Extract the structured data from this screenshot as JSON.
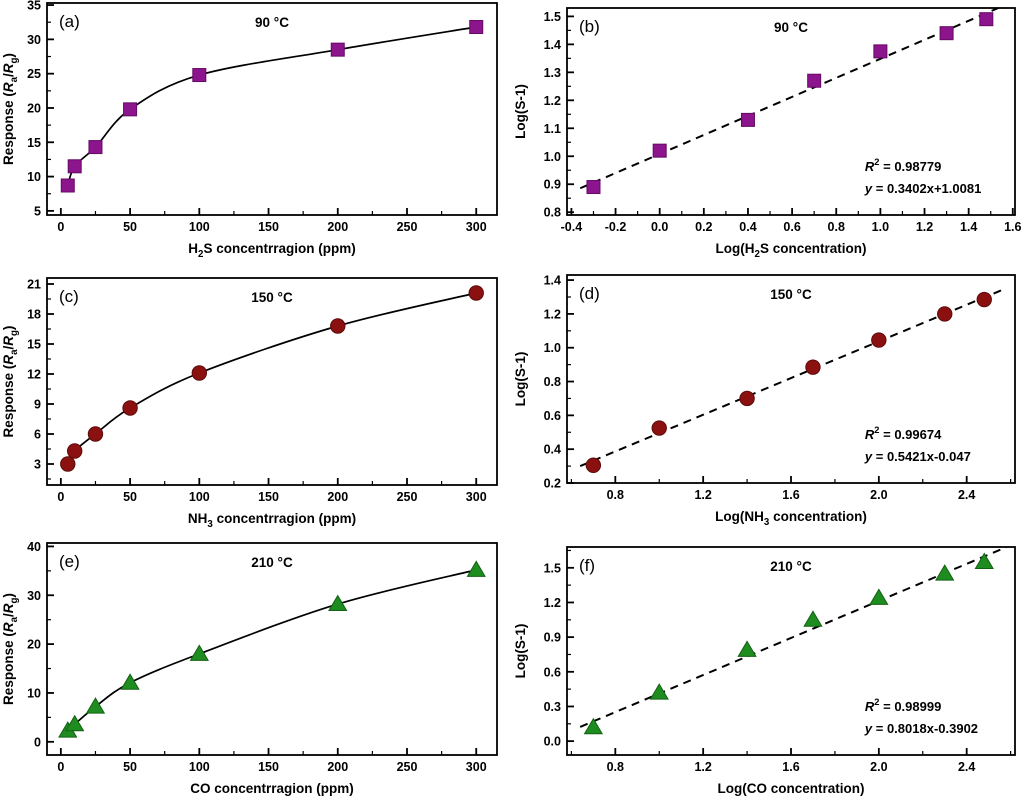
{
  "figure": {
    "description": "Gas sensor response and log-log calibration panels",
    "accent_colors": {
      "purple": "#8C148C",
      "dark_red": "#8B1111",
      "green": "#1E8C1E"
    }
  },
  "chart_data": [
    {
      "id": "a",
      "panel_label": "(a)",
      "title": "90 °C",
      "type": "scatter",
      "marker": "square",
      "color": "#8C148C",
      "edge": "#640B64",
      "connect": "line",
      "x": [
        5,
        10,
        25,
        50,
        100,
        200,
        300
      ],
      "y": [
        8.7,
        11.5,
        14.3,
        19.8,
        24.8,
        28.5,
        31.8
      ],
      "xlabel_parts": [
        {
          "t": "H"
        },
        {
          "t": "2",
          "s": "sub"
        },
        {
          "t": "S concentrragion (ppm)"
        }
      ],
      "ylabel_parts": [
        {
          "t": "Response ("
        },
        {
          "t": "R",
          "s": "i"
        },
        {
          "t": "a",
          "s": "sub"
        },
        {
          "t": "/"
        },
        {
          "t": "R",
          "s": "i"
        },
        {
          "t": "g",
          "s": "sub"
        },
        {
          "t": ")"
        }
      ],
      "xlim": [
        -10,
        315
      ],
      "ylim": [
        4.4,
        35.3
      ],
      "xticks": {
        "values": [
          0,
          50,
          100,
          150,
          200,
          250,
          300
        ],
        "labels": [
          "0",
          "50",
          "100",
          "150",
          "200",
          "250",
          "300"
        ]
      },
      "yticks": {
        "values": [
          5,
          10,
          15,
          20,
          25,
          30,
          35
        ],
        "labels": [
          "5",
          "10",
          "15",
          "20",
          "25",
          "30",
          "35"
        ]
      },
      "xminor": 25,
      "yminor": 2.5
    },
    {
      "id": "b",
      "panel_label": "(b)",
      "title": "90 °C",
      "type": "scatter",
      "marker": "square",
      "color": "#8C148C",
      "edge": "#640B64",
      "connect": "fit",
      "fit": {
        "slope": 0.3402,
        "intercept": 1.0081
      },
      "annotation": {
        "r2_parts": [
          {
            "t": "R",
            "s": "i"
          },
          {
            "t": "2",
            "s": "sup"
          },
          {
            "t": " = 0.98779"
          }
        ],
        "eq_parts": [
          {
            "t": "y",
            "s": "i"
          },
          {
            "t": " = 0.3402x+1.0081"
          }
        ]
      },
      "x": [
        -0.3,
        0.0,
        0.4,
        0.7,
        1.0,
        1.3,
        1.48
      ],
      "y": [
        0.89,
        1.02,
        1.13,
        1.27,
        1.375,
        1.44,
        1.49
      ],
      "xlabel_parts": [
        {
          "t": "Log(H"
        },
        {
          "t": "2",
          "s": "sub"
        },
        {
          "t": "S concentration)"
        }
      ],
      "ylabel_parts": [
        {
          "t": "Log(S-1)"
        }
      ],
      "xlim": [
        -0.42,
        1.61
      ],
      "ylim": [
        0.79,
        1.53
      ],
      "xticks": {
        "values": [
          -0.4,
          -0.2,
          0,
          0.2,
          0.4,
          0.6,
          0.8,
          1,
          1.2,
          1.4,
          1.6
        ],
        "labels": [
          "-0.4",
          "-0.2",
          "0.0",
          "0.2",
          "0.4",
          "0.6",
          "0.8",
          "1.0",
          "1.2",
          "1.4",
          "1.6"
        ]
      },
      "yticks": {
        "values": [
          0.8,
          0.9,
          1,
          1.1,
          1.2,
          1.3,
          1.4,
          1.5
        ],
        "labels": [
          "0.8",
          "0.9",
          "1.0",
          "1.1",
          "1.2",
          "1.3",
          "1.4",
          "1.5"
        ]
      },
      "xminor": 0.1,
      "yminor": 0.05
    },
    {
      "id": "c",
      "panel_label": "(c)",
      "title": "150 °C",
      "type": "scatter",
      "marker": "circle",
      "color": "#8B1111",
      "edge": "#5C0B0B",
      "connect": "line",
      "x": [
        5,
        10,
        25,
        50,
        100,
        200,
        300
      ],
      "y": [
        3.0,
        4.3,
        6.0,
        8.6,
        12.1,
        16.8,
        20.1
      ],
      "xlabel_parts": [
        {
          "t": "NH"
        },
        {
          "t": "3",
          "s": "sub"
        },
        {
          "t": " concentrragion (ppm)"
        }
      ],
      "ylabel_parts": [
        {
          "t": "Response ("
        },
        {
          "t": "R",
          "s": "i"
        },
        {
          "t": "a",
          "s": "sub"
        },
        {
          "t": "/"
        },
        {
          "t": "R",
          "s": "i"
        },
        {
          "t": "g",
          "s": "sub"
        },
        {
          "t": ")"
        }
      ],
      "xlim": [
        -10,
        315
      ],
      "ylim": [
        0.9,
        21.6
      ],
      "xticks": {
        "values": [
          0,
          50,
          100,
          150,
          200,
          250,
          300
        ],
        "labels": [
          "0",
          "50",
          "100",
          "150",
          "200",
          "250",
          "300"
        ]
      },
      "yticks": {
        "values": [
          3,
          6,
          9,
          12,
          15,
          18,
          21
        ],
        "labels": [
          "3",
          "6",
          "9",
          "12",
          "15",
          "18",
          "21"
        ]
      },
      "xminor": 25,
      "yminor": 1.5
    },
    {
      "id": "d",
      "panel_label": "(d)",
      "title": "150 °C",
      "type": "scatter",
      "marker": "circle",
      "color": "#8B1111",
      "edge": "#5C0B0B",
      "connect": "fit",
      "fit": {
        "slope": 0.5421,
        "intercept": -0.047
      },
      "annotation": {
        "r2_parts": [
          {
            "t": "R",
            "s": "i"
          },
          {
            "t": "2",
            "s": "sup"
          },
          {
            "t": " = 0.99674"
          }
        ],
        "eq_parts": [
          {
            "t": "y",
            "s": "i"
          },
          {
            "t": " = 0.5421x-0.047"
          }
        ]
      },
      "x": [
        0.7,
        1.0,
        1.4,
        1.7,
        2.0,
        2.3,
        2.48
      ],
      "y": [
        0.305,
        0.525,
        0.7,
        0.885,
        1.045,
        1.2,
        1.285
      ],
      "xlabel_parts": [
        {
          "t": "Log(NH"
        },
        {
          "t": "3",
          "s": "sub"
        },
        {
          "t": " concentration)"
        }
      ],
      "ylabel_parts": [
        {
          "t": "Log(S-1)"
        }
      ],
      "xlim": [
        0.58,
        2.62
      ],
      "ylim": [
        0.2,
        1.43
      ],
      "xticks": {
        "values": [
          0.8,
          1.2,
          1.6,
          2.0,
          2.4
        ],
        "labels": [
          "0.8",
          "1.2",
          "1.6",
          "2.0",
          "2.4"
        ]
      },
      "yticks": {
        "values": [
          0.2,
          0.4,
          0.6,
          0.8,
          1.0,
          1.2,
          1.4
        ],
        "labels": [
          "0.2",
          "0.4",
          "0.6",
          "0.8",
          "1.0",
          "1.2",
          "1.4"
        ]
      },
      "xminor": 0.2,
      "yminor": 0.1
    },
    {
      "id": "e",
      "panel_label": "(e)",
      "title": "210 °C",
      "type": "scatter",
      "marker": "triangle",
      "color": "#1E8C1E",
      "edge": "#136113",
      "connect": "line",
      "x": [
        5,
        10,
        25,
        50,
        100,
        200,
        300
      ],
      "y": [
        2.3,
        3.6,
        7.2,
        12.1,
        18.0,
        28.2,
        35.2
      ],
      "xlabel_parts": [
        {
          "t": "CO concentrragion (ppm)"
        }
      ],
      "ylabel_parts": [
        {
          "t": "Response ("
        },
        {
          "t": "R",
          "s": "i"
        },
        {
          "t": "a",
          "s": "sub"
        },
        {
          "t": "/"
        },
        {
          "t": "R",
          "s": "i"
        },
        {
          "t": "g",
          "s": "sub"
        },
        {
          "t": ")"
        }
      ],
      "xlim": [
        -10,
        315
      ],
      "ylim": [
        -2.7,
        40.7
      ],
      "xticks": {
        "values": [
          0,
          50,
          100,
          150,
          200,
          250,
          300
        ],
        "labels": [
          "0",
          "50",
          "100",
          "150",
          "200",
          "250",
          "300"
        ]
      },
      "yticks": {
        "values": [
          0,
          10,
          20,
          30,
          40
        ],
        "labels": [
          "0",
          "10",
          "20",
          "30",
          "40"
        ]
      },
      "xminor": 25,
      "yminor": 5
    },
    {
      "id": "f",
      "panel_label": "(f)",
      "title": "210 °C",
      "type": "scatter",
      "marker": "triangle",
      "color": "#1E8C1E",
      "edge": "#136113",
      "connect": "fit",
      "fit": {
        "slope": 0.8018,
        "intercept": -0.3902
      },
      "annotation": {
        "r2_parts": [
          {
            "t": "R",
            "s": "i"
          },
          {
            "t": "2",
            "s": "sup"
          },
          {
            "t": " = 0.98999"
          }
        ],
        "eq_parts": [
          {
            "t": "y",
            "s": "i"
          },
          {
            "t": " = 0.8018x-0.3902"
          }
        ]
      },
      "x": [
        0.7,
        1.0,
        1.4,
        1.7,
        2.0,
        2.3,
        2.48
      ],
      "y": [
        0.12,
        0.42,
        0.79,
        1.05,
        1.24,
        1.45,
        1.55
      ],
      "xlabel_parts": [
        {
          "t": "Log(CO concentration)"
        }
      ],
      "ylabel_parts": [
        {
          "t": "Log(S-1)"
        }
      ],
      "xlim": [
        0.58,
        2.62
      ],
      "ylim": [
        -0.12,
        1.68
      ],
      "xticks": {
        "values": [
          0.8,
          1.2,
          1.6,
          2.0,
          2.4
        ],
        "labels": [
          "0.8",
          "1.2",
          "1.6",
          "2.0",
          "2.4"
        ]
      },
      "yticks": {
        "values": [
          0.0,
          0.3,
          0.6,
          0.9,
          1.2,
          1.5
        ],
        "labels": [
          "0.0",
          "0.3",
          "0.6",
          "0.9",
          "1.2",
          "1.5"
        ]
      },
      "xminor": 0.2,
      "yminor": 0.15
    }
  ]
}
